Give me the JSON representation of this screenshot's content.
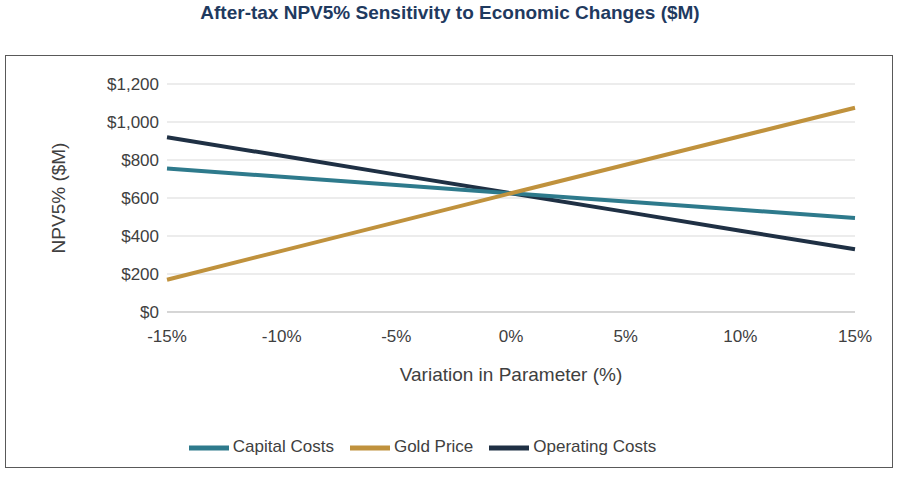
{
  "chart_data": {
    "type": "line",
    "title": "After-tax NPV5% Sensitivity to Economic Changes ($M)",
    "x_label": "Variation in Parameter (%)",
    "y_label": "NPV5% ($M)",
    "categories": [
      "-15%",
      "-10%",
      "-5%",
      "0%",
      "5%",
      "10%",
      "15%"
    ],
    "series": [
      {
        "name": "Operating Costs",
        "color": "#1f3044",
        "values": [
          920,
          822,
          723,
          625,
          527,
          428,
          330
        ]
      },
      {
        "name": "Capital Costs",
        "color": "#2e7a8c",
        "values": [
          755,
          712,
          668,
          625,
          582,
          538,
          495
        ]
      },
      {
        "name": "Gold Price",
        "color": "#c0923d",
        "values": [
          170,
          322,
          473,
          625,
          775,
          925,
          1075
        ]
      }
    ],
    "ylim": [
      0,
      1200
    ],
    "yticks": [
      {
        "value": 0,
        "label": "$0"
      },
      {
        "value": 200,
        "label": "$200"
      },
      {
        "value": 400,
        "label": "$400"
      },
      {
        "value": 600,
        "label": "$600"
      },
      {
        "value": 800,
        "label": "$800"
      },
      {
        "value": 1000,
        "label": "$1,000"
      },
      {
        "value": 1200,
        "label": "$1,200"
      }
    ],
    "grid": true,
    "legend": "bottom"
  }
}
